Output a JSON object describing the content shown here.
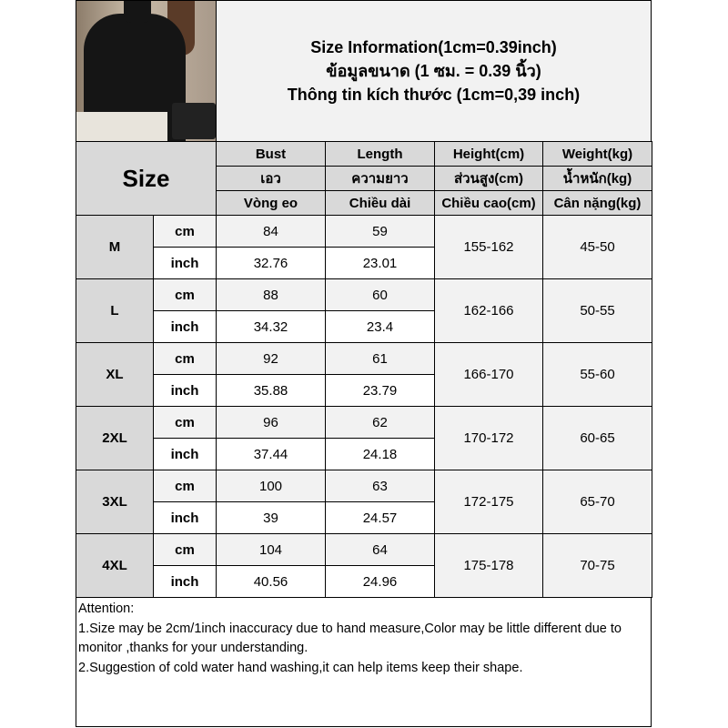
{
  "title": {
    "line1": "Size Information(1cm=0.39inch)",
    "line2": "ข้อมูลขนาด (1 ซม. = 0.39 นิ้ว)",
    "line3": "Thông tin kích thước (1cm=0,39 inch)"
  },
  "table": {
    "size_label": "Size",
    "headers": [
      [
        "Bust",
        "Length",
        "Height(cm)",
        "Weight(kg)"
      ],
      [
        "เอว",
        "ความยาว",
        "ส่วนสูง(cm)",
        "น้ำหนัก(kg)"
      ],
      [
        "Vòng eo",
        "Chiều dài",
        "Chiều cao(cm)",
        "Cân nặng(kg)"
      ]
    ],
    "unit_cm": "cm",
    "unit_inch": "inch",
    "rows": [
      {
        "size": "M",
        "bust_cm": "84",
        "length_cm": "59",
        "bust_inch": "32.76",
        "length_inch": "23.01",
        "height": "155-162",
        "weight": "45-50"
      },
      {
        "size": "L",
        "bust_cm": "88",
        "length_cm": "60",
        "bust_inch": "34.32",
        "length_inch": "23.4",
        "height": "162-166",
        "weight": "50-55"
      },
      {
        "size": "XL",
        "bust_cm": "92",
        "length_cm": "61",
        "bust_inch": "35.88",
        "length_inch": "23.79",
        "height": "166-170",
        "weight": "55-60"
      },
      {
        "size": "2XL",
        "bust_cm": "96",
        "length_cm": "62",
        "bust_inch": "37.44",
        "length_inch": "24.18",
        "height": "170-172",
        "weight": "60-65"
      },
      {
        "size": "3XL",
        "bust_cm": "100",
        "length_cm": "63",
        "bust_inch": "39",
        "length_inch": "24.57",
        "height": "172-175",
        "weight": "65-70"
      },
      {
        "size": "4XL",
        "bust_cm": "104",
        "length_cm": "64",
        "bust_inch": "40.56",
        "length_inch": "24.96",
        "height": "175-178",
        "weight": "70-75"
      }
    ]
  },
  "notes": {
    "heading": "Attention:",
    "item1": "1.Size may be 2cm/1inch inaccuracy due to hand measure,Color may be little different due to monitor ,thanks for your understanding.",
    "item2": "2.Suggestion of cold water hand washing,it can help items keep their shape."
  },
  "colors": {
    "header_gray": "#d9d9d9",
    "light_gray": "#f2f2f2"
  }
}
